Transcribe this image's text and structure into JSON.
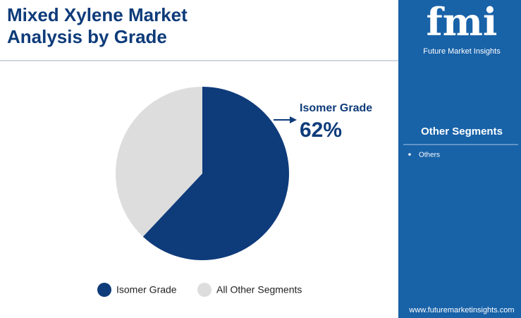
{
  "chart_data": {
    "type": "pie",
    "title": "Mixed Xylene Market Analysis by Grade",
    "categories": [
      "Isomer Grade",
      "All Other Segments"
    ],
    "values": [
      62,
      38
    ],
    "value_labels": [
      "62%",
      null
    ],
    "colors": [
      "#0e3b7a",
      "#dddddd"
    ]
  },
  "sidebar": {
    "logo": "fmi",
    "brand": "Future Market Insights",
    "heading": "Other Segments",
    "items": [
      "Others"
    ],
    "website": "www.futuremarketinsights.com"
  }
}
